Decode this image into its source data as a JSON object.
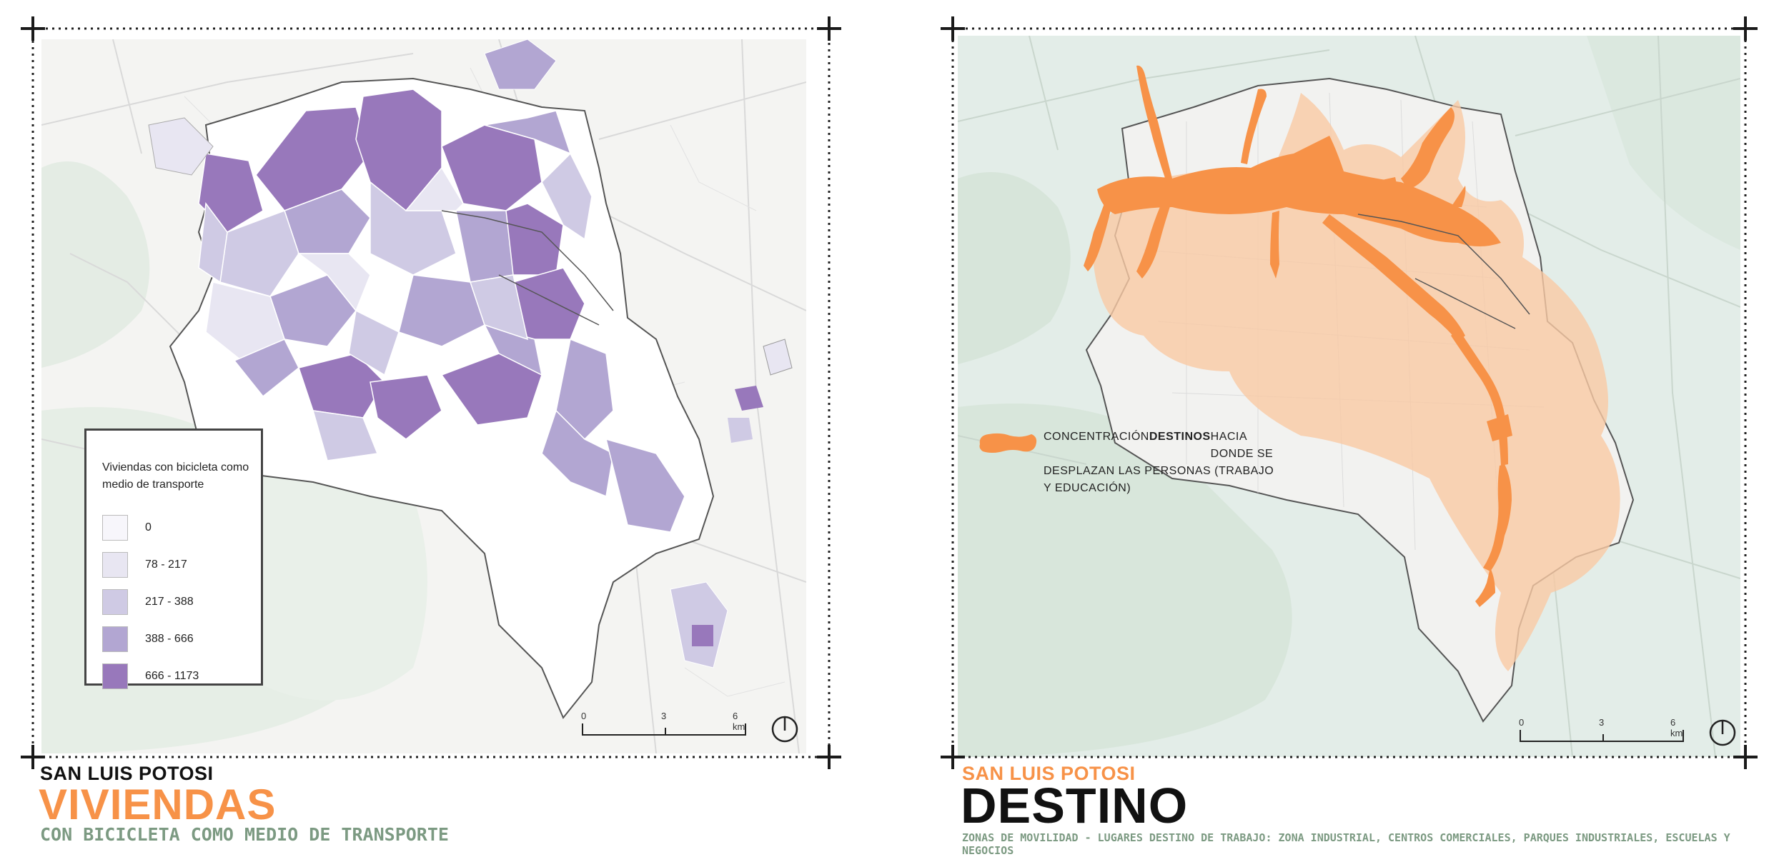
{
  "left": {
    "legend": {
      "title": "Viviendas con bicicleta como medio de transporte",
      "classes": [
        {
          "label": "0",
          "color": "#f7f6fb"
        },
        {
          "label": "78 - 217",
          "color": "#e8e6f2"
        },
        {
          "label": "217 - 388",
          "color": "#cfcae4"
        },
        {
          "label": "388 - 666",
          "color": "#b2a6d2"
        },
        {
          "label": "666 - 1173",
          "color": "#9878bb"
        }
      ]
    },
    "scale": {
      "t0": "0",
      "t1": "3",
      "t2": "6 km"
    },
    "title_small": "SAN LUIS POTOSI",
    "title_big": "VIVIENDAS",
    "subtitle": "CON BICICLETA COMO MEDIO DE TRANSPORTE"
  },
  "right": {
    "legend": {
      "line1_pre": "CONCENTRACIÓN",
      "line1_bold": "DESTINOS",
      "line1_post": "HACIA DONDE SE",
      "line2": "DESPLAZAN LAS PERSONAS (TRABAJO Y EDUCACIÓN)"
    },
    "scale": {
      "t0": "0",
      "t1": "3",
      "t2": "6 km"
    },
    "title_small": "SAN LUIS POTOSI",
    "title_big": "DESTINO",
    "subtitle": "ZONAS DE MOVILIDAD - LUGARES DESTINO DE TRABAJO: ZONA INDUSTRIAL, CENTROS COMERCIALES, PARQUES INDUSTRIALES, ESCUELAS Y NEGOCIOS"
  },
  "colors": {
    "orange": "#f79248",
    "orange_light": "#f9c9a4",
    "sage": "#7c9a82",
    "map_bg_left": "#f4f4f2",
    "map_bg_right": "#e3ede8"
  },
  "icons": [
    "north-arrow-icon",
    "corner-cross-icon",
    "destination-blob-icon"
  ]
}
